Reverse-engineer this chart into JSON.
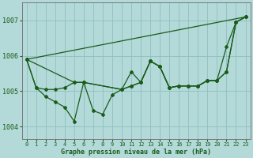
{
  "background_color": "#b3d9d9",
  "grid_color": "#8fbfbf",
  "line_color": "#1a5c1a",
  "xlabel": "Graphe pression niveau de la mer (hPa)",
  "xlim": [
    -0.5,
    23.5
  ],
  "ylim": [
    1003.65,
    1007.5
  ],
  "yticks": [
    1004,
    1005,
    1006,
    1007
  ],
  "xticks": [
    0,
    1,
    2,
    3,
    4,
    5,
    6,
    7,
    8,
    9,
    10,
    11,
    12,
    13,
    14,
    15,
    16,
    17,
    18,
    19,
    20,
    21,
    22,
    23
  ],
  "series": [
    {
      "x": [
        0,
        23
      ],
      "y": [
        1005.9,
        1007.1
      ],
      "marker": false
    },
    {
      "x": [
        0,
        1,
        2,
        3,
        4,
        5,
        6,
        7,
        8,
        9,
        10,
        11,
        12,
        13,
        14,
        15,
        16,
        17,
        18,
        19,
        20,
        21,
        22,
        23
      ],
      "y": [
        1005.9,
        1005.1,
        1004.85,
        1004.7,
        1004.55,
        1004.15,
        1005.25,
        1004.45,
        1004.35,
        1004.9,
        1005.05,
        1005.55,
        1005.25,
        1005.85,
        1005.7,
        1005.1,
        1005.15,
        1005.15,
        1005.15,
        1005.3,
        1005.3,
        1006.25,
        1006.95,
        1007.1
      ],
      "marker": true
    },
    {
      "x": [
        0,
        1,
        2,
        3,
        4,
        5,
        6,
        10,
        11,
        12,
        13,
        14,
        15,
        16,
        17,
        18,
        19,
        20,
        21,
        22,
        23
      ],
      "y": [
        1005.9,
        1005.1,
        1005.05,
        1005.05,
        1005.1,
        1005.25,
        1005.25,
        1005.05,
        1005.15,
        1005.25,
        1005.85,
        1005.7,
        1005.1,
        1005.15,
        1005.15,
        1005.15,
        1005.3,
        1005.3,
        1005.55,
        1006.95,
        1007.1
      ],
      "marker": true
    },
    {
      "x": [
        0,
        5,
        6,
        10,
        11,
        12,
        13,
        14,
        15,
        16,
        17,
        18,
        19,
        20,
        21,
        22,
        23
      ],
      "y": [
        1005.9,
        1005.25,
        1005.25,
        1005.05,
        1005.15,
        1005.25,
        1005.85,
        1005.7,
        1005.1,
        1005.15,
        1005.15,
        1005.15,
        1005.3,
        1005.3,
        1005.55,
        1006.95,
        1007.1
      ],
      "marker": true
    }
  ],
  "markersize": 2.0,
  "linewidth": 0.9
}
